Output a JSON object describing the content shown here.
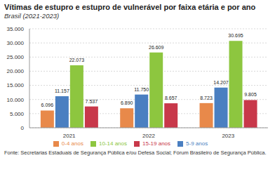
{
  "chart_data": {
    "type": "bar",
    "title": "Vítimas de estupro e estupro de vulnerável por faixa etária e por ano",
    "subtitle": "Brasil (2021-2023)",
    "categories": [
      "2021",
      "2022",
      "2023"
    ],
    "series": [
      {
        "name": "0-4 anos",
        "color": "#e8894a",
        "values": [
          6096,
          6890,
          8723
        ],
        "value_labels": [
          "6.096",
          "6.890",
          "8.723"
        ]
      },
      {
        "name": "5-9 anos",
        "color": "#4a7fc1",
        "values": [
          11157,
          11750,
          14207
        ],
        "value_labels": [
          "11.157",
          "11.750",
          "14.207"
        ]
      },
      {
        "name": "10-14 anos",
        "color": "#8dc63f",
        "values": [
          22073,
          26609,
          30695
        ],
        "value_labels": [
          "22.073",
          "26.609",
          "30.695"
        ]
      },
      {
        "name": "15-19 anos",
        "color": "#c8384a",
        "values": [
          7537,
          8657,
          9805
        ],
        "value_labels": [
          "7.537",
          "8.657",
          "9.805"
        ]
      }
    ],
    "ylim": [
      0,
      35000
    ],
    "yticks": [
      0,
      {
        "value": 5000,
        "label": "5.000"
      },
      {
        "value": 10000,
        "label": "10.000"
      },
      {
        "value": 15000,
        "label": "15.000"
      },
      {
        "value": 20000,
        "label": "20.000"
      },
      {
        "value": 25000,
        "label": "25.000"
      },
      {
        "value": 30000,
        "label": "30.000"
      },
      {
        "value": 35000,
        "label": "35.000"
      }
    ],
    "grid": true,
    "legend": "bottom",
    "data_labels": true,
    "annotations": [
      "Fonte: Secretarias Estaduais de Segurança Pública e/ou Defesa Social; Fórum Brasileiro de Segurança Pública."
    ]
  }
}
